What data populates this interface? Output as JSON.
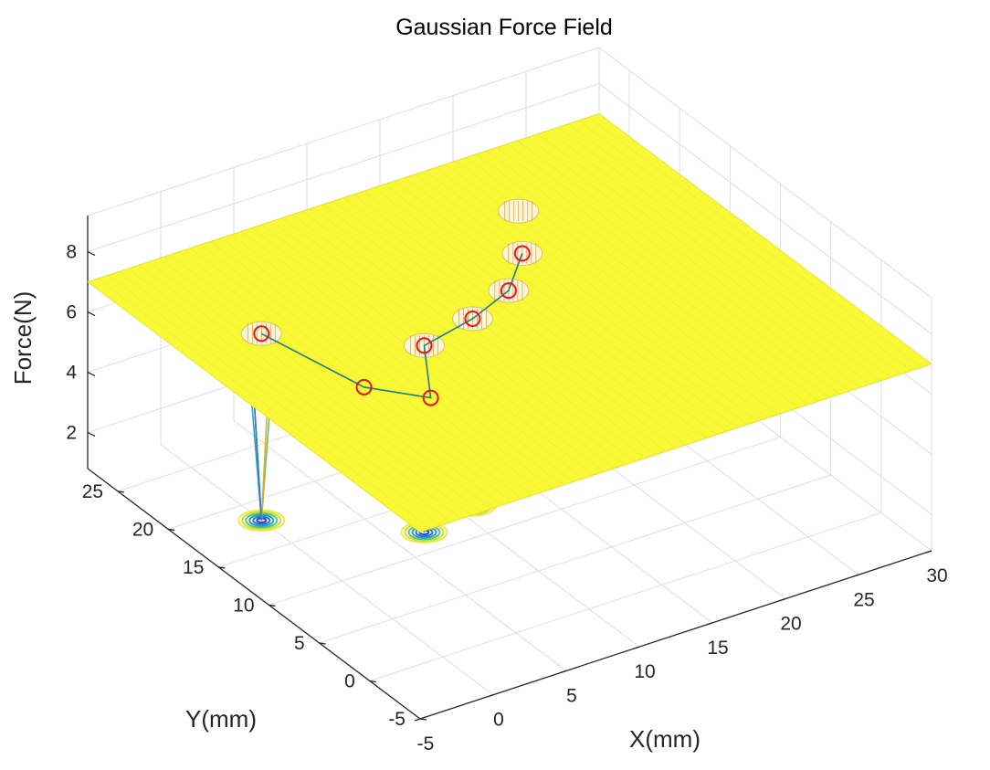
{
  "chart_data": {
    "type": "surface3d",
    "title": "Gaussian Force Field",
    "xlabel": "X(mm)",
    "ylabel": "Y(mm)",
    "zlabel": "Force(N)",
    "x_ticks": [
      -5,
      0,
      5,
      10,
      15,
      20,
      25,
      30
    ],
    "y_ticks": [
      -5,
      0,
      5,
      10,
      15,
      20,
      25
    ],
    "z_ticks": [
      2,
      4,
      6,
      8
    ],
    "xlim": [
      -5,
      30
    ],
    "ylim": [
      -5,
      28
    ],
    "zlim": [
      0.8,
      9.2
    ],
    "grid": true,
    "surface_color": "#f8f834",
    "plateau_level": 7.0,
    "path_color": "#1b7f82",
    "marker_color": "#e8151b",
    "wells": [
      {
        "x": 0.0,
        "y": 18.0,
        "depth_to": 0.8
      },
      {
        "x": 7.0,
        "y": 12.0,
        "depth_to": 0.8
      },
      {
        "x": 11.0,
        "y": 13.0,
        "depth_to": 0.8
      },
      {
        "x": 14.5,
        "y": 14.5,
        "depth_to": 0.8
      },
      {
        "x": 17.5,
        "y": 17.5,
        "depth_to": 0.8
      },
      {
        "x": 20.0,
        "y": 21.5,
        "depth_to": 0.8
      }
    ],
    "path": [
      {
        "x": 0.0,
        "y": 18.0,
        "z": 7.0
      },
      {
        "x": 1.5,
        "y": 10.0,
        "z": 7.0
      },
      {
        "x": 4.0,
        "y": 7.0,
        "z": 7.0
      },
      {
        "x": 7.0,
        "y": 12.0,
        "z": 7.0
      },
      {
        "x": 11.0,
        "y": 13.0,
        "z": 7.0
      },
      {
        "x": 14.5,
        "y": 14.5,
        "z": 7.0
      },
      {
        "x": 17.5,
        "y": 17.5,
        "z": 7.0
      }
    ]
  }
}
